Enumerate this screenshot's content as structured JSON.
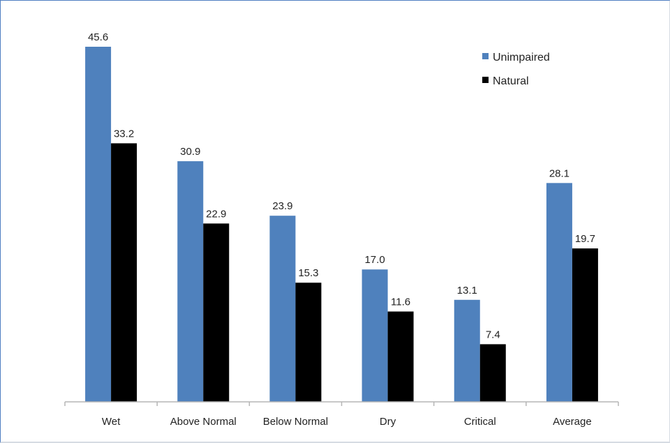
{
  "chart_data": {
    "type": "bar",
    "title": "",
    "xlabel": "",
    "ylabel": "",
    "categories": [
      "Wet",
      "Above Normal",
      "Below Normal",
      "Dry",
      "Critical",
      "Average"
    ],
    "series": [
      {
        "name": "Unimpaired",
        "values": [
          45.6,
          30.9,
          23.9,
          17.0,
          13.1,
          28.1
        ],
        "labels": [
          "45.6",
          "30.9",
          "23.9",
          "17.0",
          "13.1",
          "28.1"
        ],
        "color": "#4f81bd"
      },
      {
        "name": "Natural",
        "values": [
          33.2,
          22.9,
          15.3,
          11.6,
          7.4,
          19.7
        ],
        "labels": [
          "33.2",
          "22.9",
          "15.3",
          "11.6",
          "7.4",
          "19.7"
        ],
        "color": "#000000"
      }
    ],
    "ylim": [
      0,
      45.6
    ],
    "grid": false,
    "legend": "top-right"
  }
}
